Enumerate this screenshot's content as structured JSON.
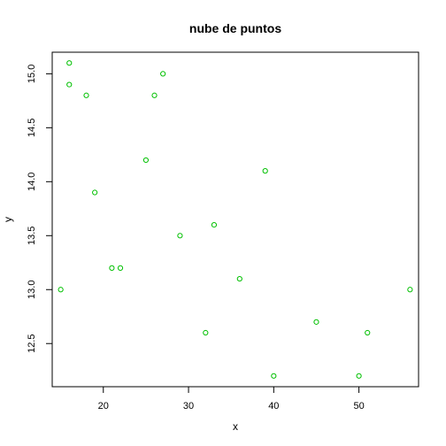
{
  "chart_data": {
    "type": "scatter",
    "title": "nube de puntos",
    "xlabel": "x",
    "ylabel": "y",
    "xlim": [
      14,
      57
    ],
    "ylim": [
      12.1,
      15.2
    ],
    "xticks": [
      20,
      30,
      40,
      50
    ],
    "yticks": [
      12.5,
      13.0,
      13.5,
      14.0,
      14.5,
      15.0
    ],
    "ytick_labels": [
      "12.5",
      "13.0",
      "13.5",
      "14.0",
      "14.5",
      "15.0"
    ],
    "grid": false,
    "marker": "open-circle",
    "point_color": "#00C000",
    "points": [
      {
        "x": 15,
        "y": 13.0
      },
      {
        "x": 16,
        "y": 15.1
      },
      {
        "x": 16,
        "y": 14.9
      },
      {
        "x": 18,
        "y": 14.8
      },
      {
        "x": 19,
        "y": 13.9
      },
      {
        "x": 21,
        "y": 13.2
      },
      {
        "x": 22,
        "y": 13.2
      },
      {
        "x": 25,
        "y": 14.2
      },
      {
        "x": 26,
        "y": 14.8
      },
      {
        "x": 27,
        "y": 15.0
      },
      {
        "x": 29,
        "y": 13.5
      },
      {
        "x": 32,
        "y": 12.6
      },
      {
        "x": 33,
        "y": 13.6
      },
      {
        "x": 36,
        "y": 13.1
      },
      {
        "x": 39,
        "y": 14.1
      },
      {
        "x": 40,
        "y": 12.2
      },
      {
        "x": 45,
        "y": 12.7
      },
      {
        "x": 50,
        "y": 12.2
      },
      {
        "x": 51,
        "y": 12.6
      },
      {
        "x": 56,
        "y": 13.0
      }
    ]
  }
}
